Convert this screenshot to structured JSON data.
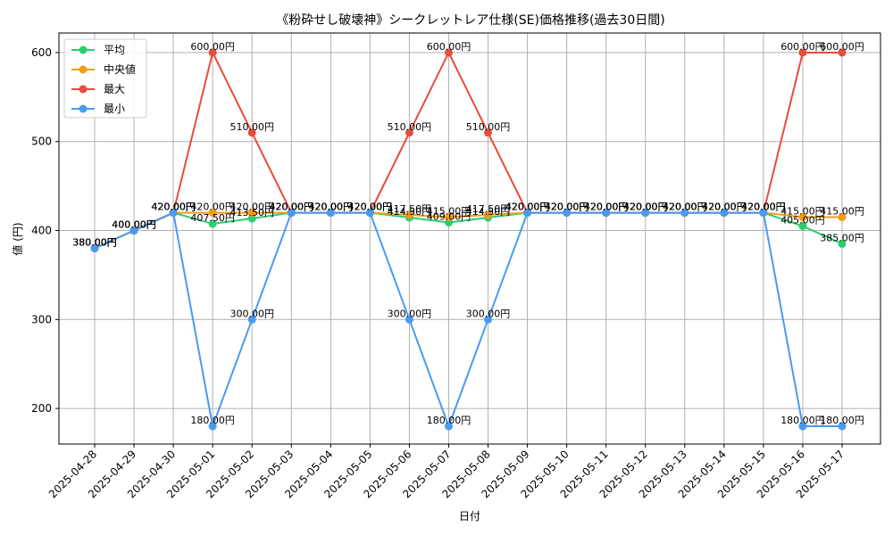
{
  "chart_data": {
    "type": "line",
    "title": "《粉砕せし破壊神》シークレットレア仕様(SE)価格推移(過去30日間)",
    "xlabel": "日付",
    "ylabel": "値 (円)",
    "ylim": [
      160,
      622
    ],
    "yticks": [
      200,
      300,
      400,
      500,
      600
    ],
    "grid": true,
    "legend_position": "top-left",
    "value_suffix": "円",
    "categories": [
      "2025-04-28",
      "2025-04-29",
      "2025-04-30",
      "2025-05-01",
      "2025-05-02",
      "2025-05-03",
      "2025-05-04",
      "2025-05-05",
      "2025-05-06",
      "2025-05-07",
      "2025-05-08",
      "2025-05-09",
      "2025-05-10",
      "2025-05-11",
      "2025-05-12",
      "2025-05-13",
      "2025-05-14",
      "2025-05-15",
      "2025-05-16",
      "2025-05-17"
    ],
    "series": [
      {
        "name": "平均",
        "color": "#2ecc71",
        "values": [
          380,
          400,
          420,
          407.5,
          413.5,
          420,
          420,
          420,
          414.5,
          409,
          414.5,
          420,
          420,
          420,
          420,
          420,
          420,
          420,
          405,
          385
        ]
      },
      {
        "name": "中央値",
        "color": "#f39c12",
        "values": [
          380,
          400,
          420,
          420,
          420,
          420,
          420,
          420,
          417.5,
          415,
          417.5,
          420,
          420,
          420,
          420,
          420,
          420,
          420,
          415,
          415
        ]
      },
      {
        "name": "最大",
        "color": "#e74c3c",
        "values": [
          380,
          400,
          420,
          600,
          510,
          420,
          420,
          420,
          510,
          600,
          510,
          420,
          420,
          420,
          420,
          420,
          420,
          420,
          600,
          600
        ]
      },
      {
        "name": "最小",
        "color": "#4a9af0",
        "values": [
          380,
          400,
          420,
          180,
          300,
          420,
          420,
          420,
          300,
          180,
          300,
          420,
          420,
          420,
          420,
          420,
          420,
          420,
          180,
          180
        ]
      }
    ]
  }
}
